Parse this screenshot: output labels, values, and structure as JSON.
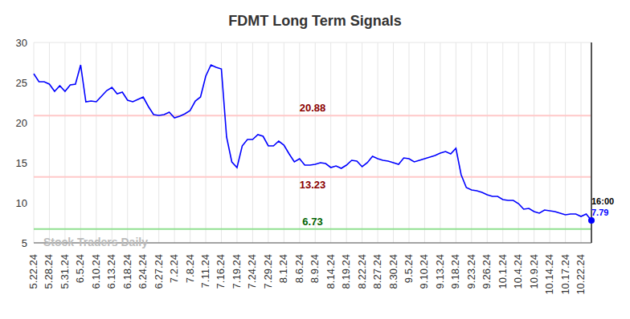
{
  "chart_data": {
    "type": "line",
    "title": "FDMT Long Term Signals",
    "categories": [
      "5.22.24",
      null,
      null,
      "5.28.24",
      null,
      null,
      "5.31.24",
      null,
      null,
      "6.5.24",
      null,
      null,
      "6.10.24",
      null,
      null,
      "6.13.24",
      null,
      null,
      "6.18.24",
      null,
      null,
      "6.24.24",
      null,
      null,
      "6.27.24",
      null,
      null,
      "7.2.24",
      null,
      null,
      "7.8.24",
      null,
      null,
      "7.11.24",
      null,
      null,
      "7.16.24",
      null,
      null,
      "7.19.24",
      null,
      null,
      "7.24.24",
      null,
      null,
      "7.29.24",
      null,
      null,
      "8.1.24",
      null,
      null,
      "8.6.24",
      null,
      null,
      "8.9.24",
      null,
      null,
      "8.14.24",
      null,
      null,
      "8.19.24",
      null,
      null,
      "8.22.24",
      null,
      null,
      "8.27.24",
      null,
      null,
      "8.30.24",
      null,
      null,
      "9.5.24",
      null,
      null,
      "9.10.24",
      null,
      null,
      "9.13.24",
      null,
      null,
      "9.18.24",
      null,
      null,
      "9.23.24",
      null,
      null,
      "9.26.24",
      null,
      null,
      "10.1.24",
      null,
      null,
      "10.4.24",
      null,
      null,
      "10.9.24",
      null,
      null,
      "10.14.24",
      null,
      null,
      "10.17.24",
      null,
      null,
      "10.22.24",
      null,
      null
    ],
    "values": [
      26.1,
      25.1,
      25.1,
      24.8,
      23.9,
      24.6,
      23.9,
      24.7,
      24.8,
      27.2,
      22.6,
      22.7,
      22.6,
      23.3,
      24.0,
      24.4,
      23.6,
      23.8,
      22.8,
      22.6,
      22.9,
      23.2,
      22.0,
      21.0,
      20.9,
      21.0,
      21.3,
      20.6,
      20.8,
      21.1,
      21.5,
      22.7,
      23.2,
      25.8,
      27.2,
      26.9,
      26.7,
      18.2,
      15.1,
      14.4,
      17.1,
      17.9,
      17.9,
      18.5,
      18.3,
      17.1,
      17.1,
      17.7,
      17.2,
      16.1,
      15.1,
      15.5,
      14.7,
      14.7,
      14.8,
      15.0,
      14.9,
      14.4,
      14.6,
      14.3,
      14.7,
      15.3,
      15.2,
      14.5,
      15.0,
      15.8,
      15.5,
      15.3,
      15.2,
      15.0,
      14.8,
      15.6,
      15.5,
      15.1,
      15.3,
      15.5,
      15.7,
      15.9,
      16.2,
      16.4,
      16.1,
      16.8,
      13.5,
      11.9,
      11.6,
      11.5,
      11.3,
      11.0,
      10.8,
      10.8,
      10.4,
      10.3,
      10.3,
      9.9,
      9.2,
      9.3,
      8.9,
      8.7,
      9.1,
      9.0,
      8.9,
      8.7,
      8.5,
      8.6,
      8.6,
      8.3,
      8.6,
      7.79
    ],
    "color": "#0000ff",
    "ylim": [
      5,
      30
    ],
    "yticks": [
      5,
      10,
      15,
      20,
      25,
      30
    ],
    "grid": true,
    "reference_lines": [
      {
        "value": 20.88,
        "color": "#ffc8c8",
        "label_color": "#8b0000"
      },
      {
        "value": 13.23,
        "color": "#ffc8c8",
        "label_color": "#8b0000"
      },
      {
        "value": 6.73,
        "color": "#90e090",
        "label_color": "#006400"
      }
    ],
    "annotations": [
      "16:00"
    ],
    "watermark": "Stock Traders Daily"
  }
}
